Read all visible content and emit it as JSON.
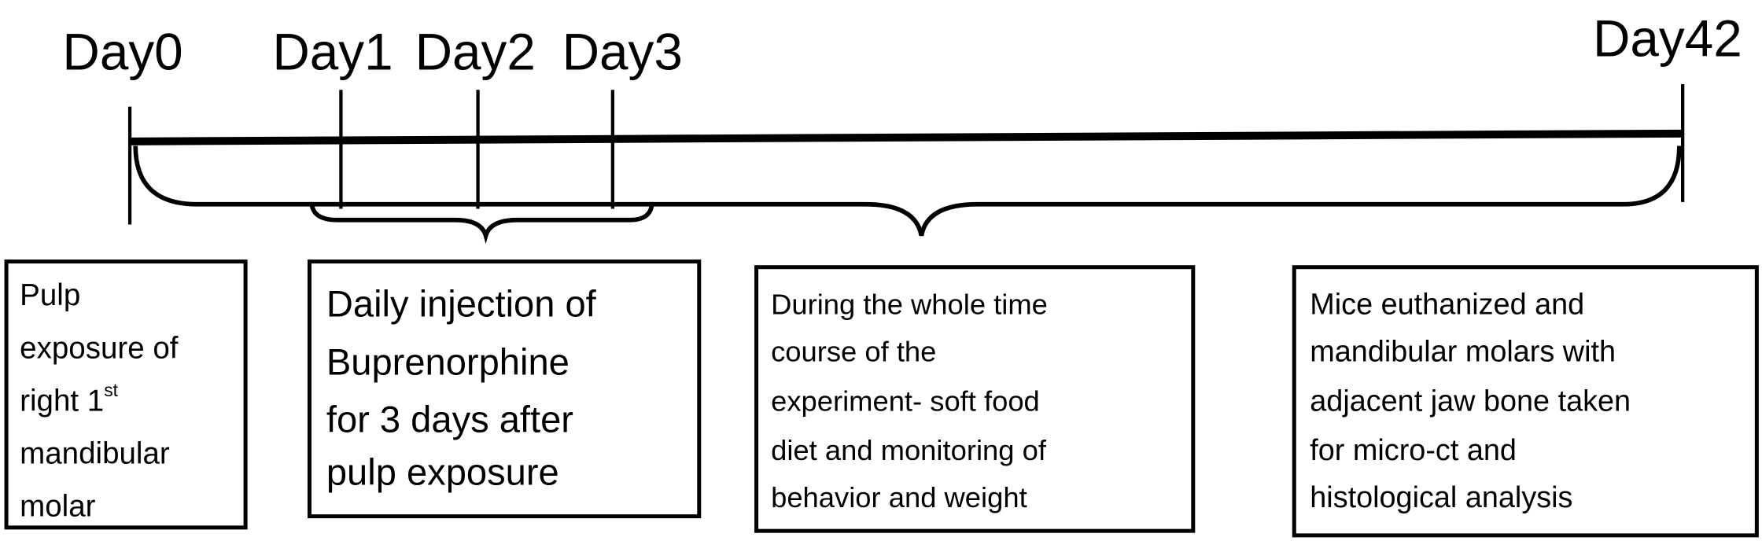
{
  "timeline": {
    "labels": [
      "Day0",
      "Day1",
      "Day2",
      "Day3",
      "Day42"
    ]
  },
  "boxes": [
    {
      "lines": [
        "Pulp",
        "exposure of",
        "right 1",
        "mandibular",
        "molar"
      ],
      "superscript": "st"
    },
    {
      "lines": [
        "Daily injection of",
        "Buprenorphine",
        "for 3 days after",
        "pulp exposure"
      ]
    },
    {
      "lines": [
        "During the whole time",
        "course of the",
        "experiment- soft food",
        "diet and monitoring of",
        "behavior and weight"
      ]
    },
    {
      "lines": [
        "Mice euthanized and",
        "mandibular molars with",
        "adjacent jaw bone taken",
        "for micro-ct and",
        "histological analysis"
      ]
    }
  ],
  "colors": {
    "stroke": "#000000",
    "background": "#ffffff"
  }
}
